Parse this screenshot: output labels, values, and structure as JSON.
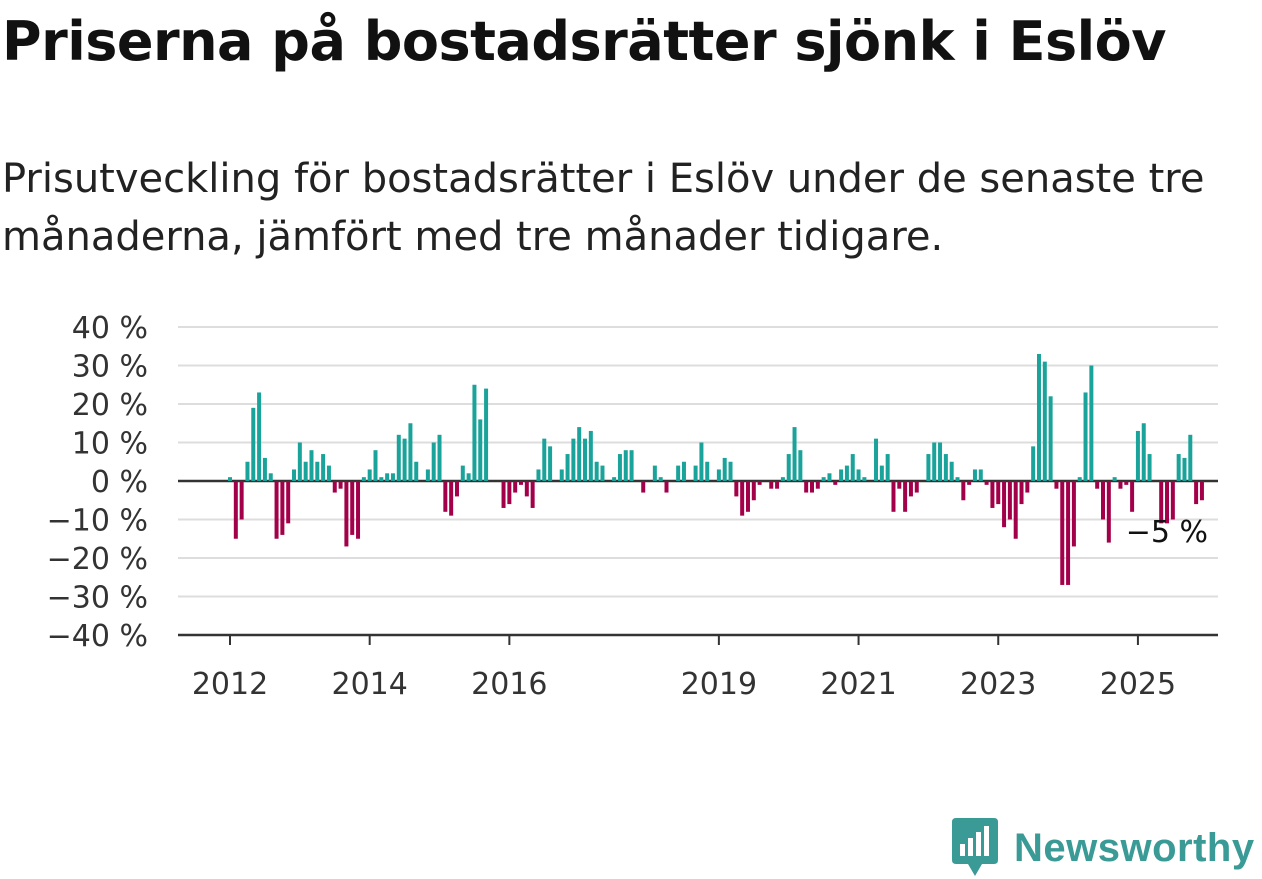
{
  "title": "Priserna på bostadsrätter sjönk i Eslöv",
  "subtitle": "Prisutveckling för bostadsrätter i Eslöv under de senaste tre månaderna, jämfört med tre månader tidigare.",
  "brand": {
    "name": "Newsworthy",
    "color": "#3a9a96"
  },
  "colors": {
    "positive": "#1aa39a",
    "negative": "#a3004a",
    "grid": "#dddddd",
    "axis": "#333333"
  },
  "chart_data": {
    "type": "bar",
    "title": "",
    "xlabel": "",
    "ylabel": "",
    "ylim": [
      -40,
      40
    ],
    "y_ticks": [
      40,
      30,
      20,
      10,
      0,
      -10,
      -20,
      -30,
      -40
    ],
    "y_tick_labels": [
      "40 %",
      "30 %",
      "20 %",
      "10 %",
      "0 %",
      "−10 %",
      "−20 %",
      "−30 %",
      "−40 %"
    ],
    "x_ticks": [
      {
        "label": "2012",
        "index": 0
      },
      {
        "label": "2014",
        "index": 24
      },
      {
        "label": "2016",
        "index": 48
      },
      {
        "label": "2019",
        "index": 84
      },
      {
        "label": "2021",
        "index": 108
      },
      {
        "label": "2023",
        "index": 132
      },
      {
        "label": "2025",
        "index": 156
      }
    ],
    "start": "2012-01",
    "frequency": "monthly",
    "annotation": "−5 %",
    "values": [
      1,
      -15,
      -10,
      5,
      19,
      23,
      6,
      2,
      -15,
      -14,
      -11,
      3,
      10,
      5,
      8,
      5,
      7,
      4,
      -3,
      -2,
      -17,
      -14,
      -15,
      1,
      3,
      8,
      1,
      2,
      2,
      12,
      11,
      15,
      5,
      0,
      3,
      10,
      12,
      -8,
      -9,
      -4,
      4,
      2,
      25,
      16,
      24,
      0,
      0,
      -7,
      -6,
      -3,
      -1,
      -4,
      -7,
      3,
      11,
      9,
      0,
      3,
      7,
      11,
      14,
      11,
      13,
      5,
      4,
      0,
      1,
      7,
      8,
      8,
      0,
      -3,
      0,
      4,
      1,
      -3,
      0,
      4,
      5,
      0,
      4,
      10,
      5,
      0,
      3,
      6,
      5,
      -4,
      -9,
      -8,
      -5,
      -1,
      0,
      -2,
      -2,
      1,
      7,
      14,
      8,
      -3,
      -3,
      -2,
      1,
      2,
      -1,
      3,
      4,
      7,
      3,
      1,
      0,
      11,
      4,
      7,
      -8,
      -2,
      -8,
      -4,
      -3,
      0,
      7,
      10,
      10,
      7,
      5,
      1,
      -5,
      -1,
      3,
      3,
      -1,
      -7,
      -6,
      -12,
      -10,
      -15,
      -6,
      -3,
      9,
      33,
      31,
      22,
      -2,
      -27,
      -27,
      -17,
      1,
      23,
      30,
      -2,
      -10,
      -16,
      1,
      -2,
      -1,
      -8,
      13,
      15,
      7,
      0,
      -11,
      -11,
      -10,
      7,
      6,
      12,
      -6,
      -5
    ]
  }
}
